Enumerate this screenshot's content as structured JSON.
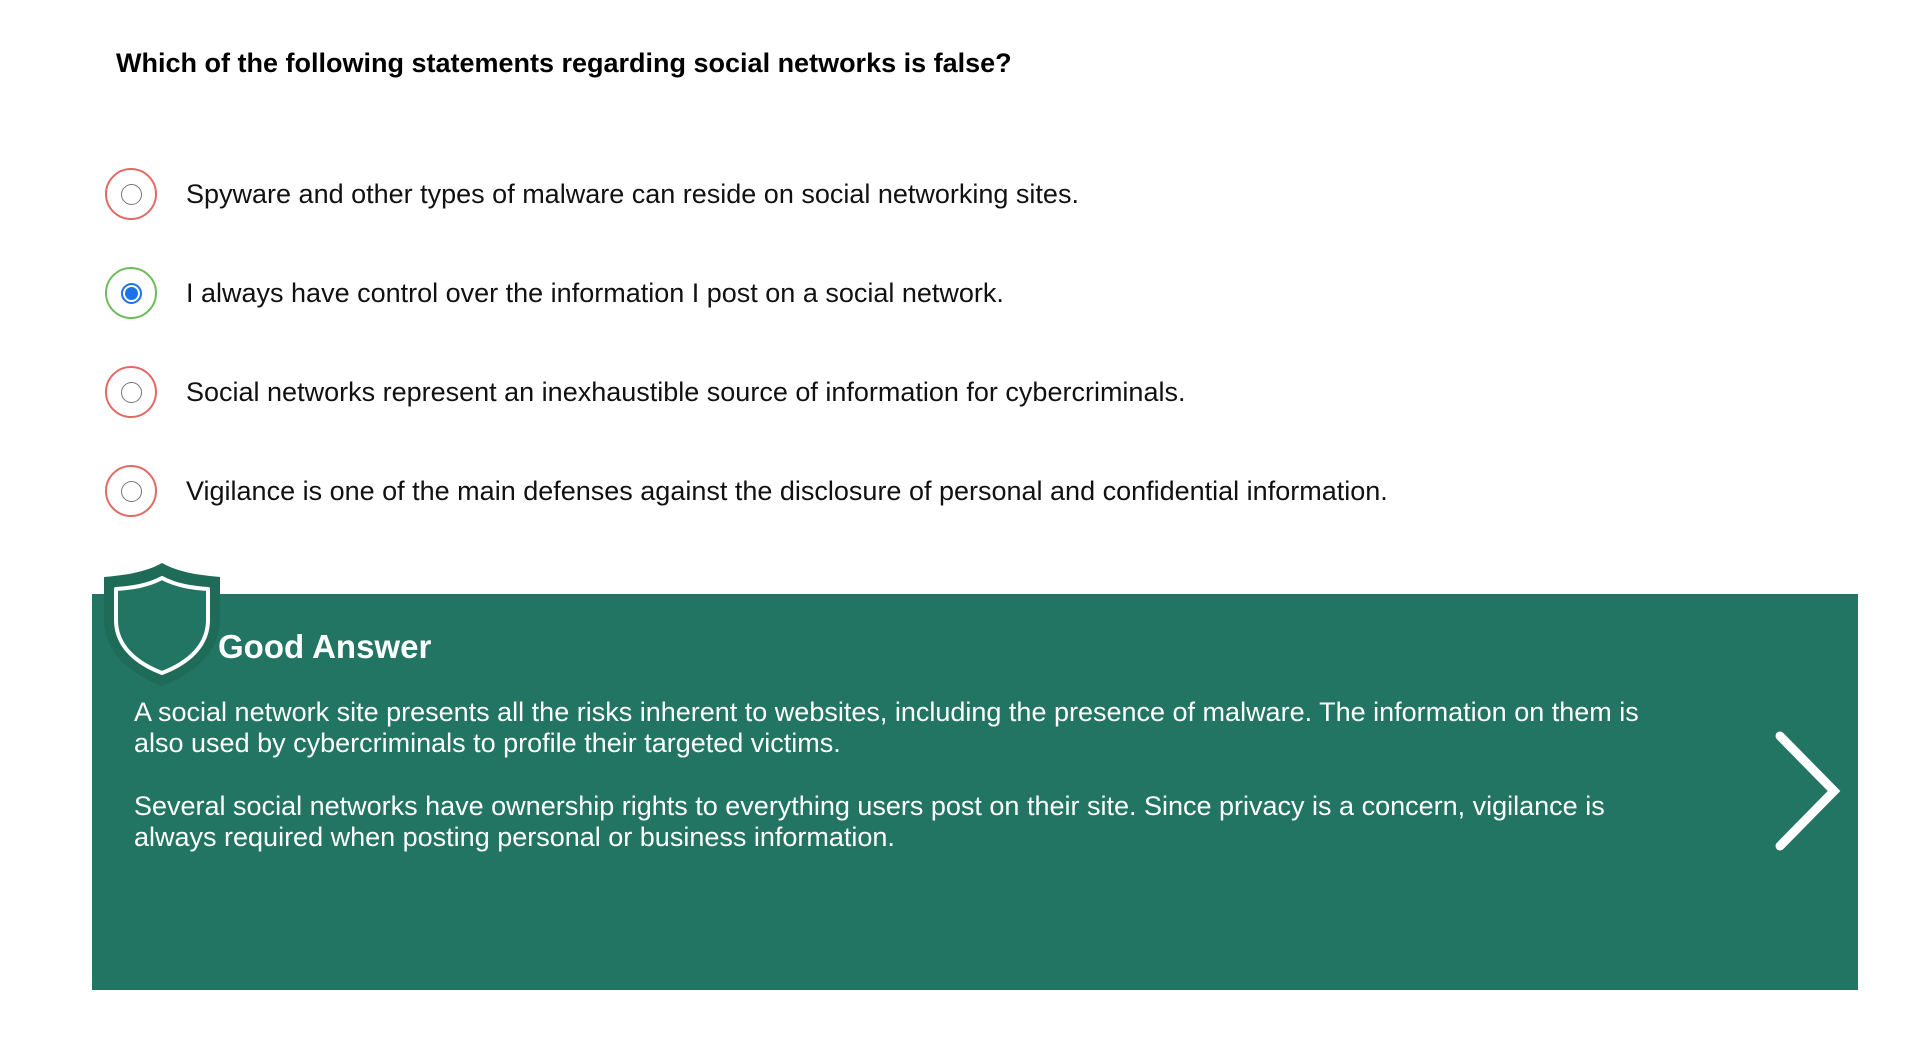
{
  "question": {
    "text": "Which of the following statements regarding social networks is false?"
  },
  "options": [
    {
      "label": "Spyware and other types of malware can reside on social networking sites.",
      "selected": false,
      "status": "incorrect"
    },
    {
      "label": "I always have control over the information I post on a social network.",
      "selected": true,
      "status": "correct"
    },
    {
      "label": "Social networks represent an inexhaustible source of information for cybercriminals.",
      "selected": false,
      "status": "incorrect"
    },
    {
      "label": "Vigilance is one of the main defenses against the disclosure of personal and confidential information.",
      "selected": false,
      "status": "incorrect"
    }
  ],
  "feedback": {
    "title": "Good Answer",
    "paragraphs": [
      "A social network site presents all the risks inherent to websites, including the presence of malware. The information on them is also used by cybercriminals to profile their targeted victims.",
      "Several social networks have ownership rights to everything users post on their site. Since privacy is a concern, vigilance is always required when posting personal or business information."
    ],
    "icon": "shield-icon",
    "next_icon": "chevron-right-icon"
  },
  "colors": {
    "panel": "#227562",
    "correct_ring": "#6bbd5a",
    "incorrect_ring": "#e26a66",
    "radio_checked": "#1a73e8"
  }
}
